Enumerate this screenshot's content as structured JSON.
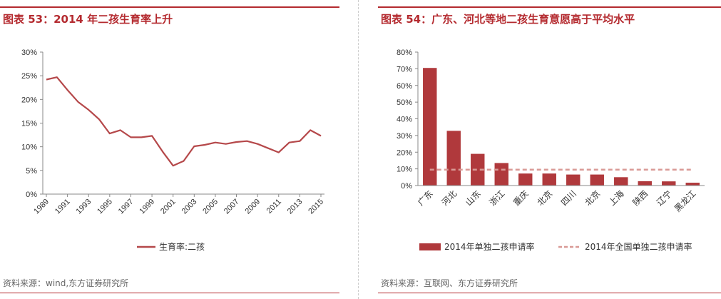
{
  "left": {
    "title": "图表 53：2014 年二孩生育率上升",
    "source": "资料来源：wind,东方证券研究所"
  },
  "right": {
    "title": "图表 54：广东、河北等地二孩生育意愿高于平均水平",
    "source": "资料来源：互联网、东方证券研究所"
  },
  "chart_data": [
    {
      "type": "line",
      "x": [
        1989,
        1990,
        1991,
        1992,
        1993,
        1994,
        1995,
        1996,
        1997,
        1998,
        1999,
        2000,
        2001,
        2002,
        2003,
        2004,
        2005,
        2006,
        2007,
        2008,
        2009,
        2010,
        2011,
        2012,
        2013,
        2014,
        2015
      ],
      "x_tick_labels": [
        "1989",
        "1991",
        "1993",
        "1995",
        "1997",
        "1999",
        "2001",
        "2003",
        "2005",
        "2007",
        "2009",
        "2011",
        "2013",
        "2015"
      ],
      "series": [
        {
          "name": "生育率:二孩",
          "values": [
            24.2,
            24.7,
            22.0,
            19.5,
            17.8,
            15.8,
            12.8,
            13.5,
            12.0,
            12.0,
            12.3,
            9.0,
            6.0,
            7.0,
            10.1,
            10.4,
            10.9,
            10.6,
            11.0,
            11.2,
            10.6,
            9.7,
            8.8,
            10.9,
            11.2,
            13.5,
            12.3
          ]
        }
      ],
      "y_tick_labels": [
        "0%",
        "5%",
        "10%",
        "15%",
        "20%",
        "25%",
        "30%"
      ],
      "ylim": [
        0,
        30
      ],
      "line_color": "#b5484a",
      "legend": "bottom"
    },
    {
      "type": "bar",
      "categories": [
        "广东",
        "河北",
        "山东",
        "浙江",
        "重庆",
        "北京",
        "四川",
        "北京",
        "上海",
        "陕西",
        "辽宁",
        "黑龙江"
      ],
      "series": [
        {
          "name": "2014年单独二孩申请率",
          "kind": "bar",
          "values": [
            70.5,
            32.8,
            19.0,
            13.5,
            7.2,
            7.2,
            6.6,
            6.6,
            5.0,
            2.6,
            2.5,
            1.7
          ]
        },
        {
          "name": "2014年全国单独二孩申请率",
          "kind": "dashed-line",
          "value": 9.5
        }
      ],
      "y_tick_labels": [
        "0%",
        "10%",
        "20%",
        "30%",
        "40%",
        "50%",
        "60%",
        "70%",
        "80%"
      ],
      "ylim": [
        0,
        80
      ],
      "bar_color": "#b0393c",
      "line_color": "#d99a96",
      "legend": "bottom"
    }
  ]
}
